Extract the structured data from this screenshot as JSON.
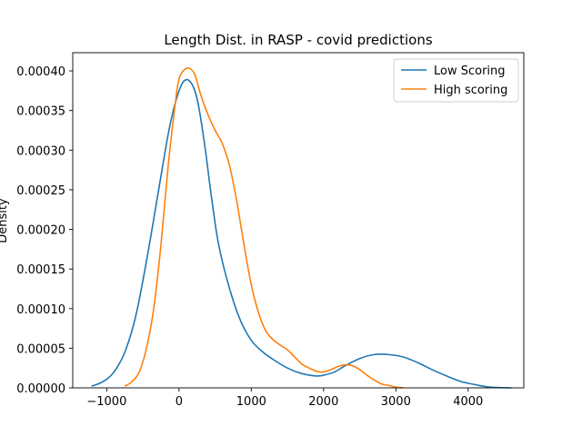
{
  "chart_data": {
    "type": "line",
    "title": "Length Dist. in RASP - covid predictions",
    "xlabel": "",
    "ylabel": "Density",
    "xlim": [
      -1470,
      4770
    ],
    "ylim": [
      0,
      0.000423
    ],
    "xticks": [
      {
        "value": -1000,
        "label": "−1000"
      },
      {
        "value": 0,
        "label": "0"
      },
      {
        "value": 1000,
        "label": "1000"
      },
      {
        "value": 2000,
        "label": "2000"
      },
      {
        "value": 3000,
        "label": "3000"
      },
      {
        "value": 4000,
        "label": "4000"
      }
    ],
    "yticks": [
      {
        "value": 0.0,
        "label": "0.00000"
      },
      {
        "value": 5e-05,
        "label": "0.00005"
      },
      {
        "value": 0.0001,
        "label": "0.00010"
      },
      {
        "value": 0.00015,
        "label": "0.00015"
      },
      {
        "value": 0.0002,
        "label": "0.00020"
      },
      {
        "value": 0.00025,
        "label": "0.00025"
      },
      {
        "value": 0.0003,
        "label": "0.00030"
      },
      {
        "value": 0.00035,
        "label": "0.00035"
      },
      {
        "value": 0.0004,
        "label": "0.00040"
      }
    ],
    "grid": false,
    "legend_position": "top-right",
    "series": [
      {
        "name": "Low Scoring",
        "color": "#1f77b4",
        "x": [
          -1210,
          -1050,
          -900,
          -750,
          -600,
          -450,
          -300,
          -150,
          -50,
          50,
          150,
          250,
          350,
          450,
          550,
          700,
          850,
          1000,
          1150,
          1300,
          1500,
          1700,
          1900,
          2000,
          2150,
          2300,
          2500,
          2700,
          2900,
          3100,
          3300,
          3500,
          3700,
          3900,
          4100,
          4300,
          4600
        ],
        "y": [
          2e-06,
          8e-06,
          2e-05,
          4.5e-05,
          9e-05,
          0.00016,
          0.00024,
          0.00032,
          0.00036,
          0.000385,
          0.000387,
          0.000365,
          0.00031,
          0.00024,
          0.00018,
          0.000125,
          8.5e-05,
          6e-05,
          4.6e-05,
          3.6e-05,
          2.5e-05,
          1.8e-05,
          1.5e-05,
          1.6e-05,
          2e-05,
          2.8e-05,
          3.7e-05,
          4.2e-05,
          4.2e-05,
          3.9e-05,
          3.2e-05,
          2.3e-05,
          1.5e-05,
          8e-06,
          4e-06,
          1e-06,
          0.0
        ]
      },
      {
        "name": "High scoring",
        "color": "#ff7f0e",
        "x": [
          -750,
          -650,
          -550,
          -450,
          -350,
          -250,
          -150,
          -50,
          0,
          80,
          150,
          220,
          300,
          400,
          500,
          600,
          700,
          800,
          900,
          1000,
          1100,
          1200,
          1300,
          1400,
          1500,
          1600,
          1700,
          1800,
          1900,
          2000,
          2100,
          2200,
          2300,
          2400,
          2500,
          2600,
          2700,
          2800,
          2900,
          3000,
          3100
        ],
        "y": [
          2e-06,
          8e-06,
          2e-05,
          5e-05,
          0.0001,
          0.00018,
          0.00028,
          0.00036,
          0.00039,
          0.000402,
          0.000403,
          0.000395,
          0.00037,
          0.000345,
          0.000325,
          0.000308,
          0.00028,
          0.000235,
          0.00018,
          0.00013,
          9.5e-05,
          7.2e-05,
          6.1e-05,
          5.4e-05,
          4.8e-05,
          3.9e-05,
          3e-05,
          2.5e-05,
          2.1e-05,
          2e-05,
          2.3e-05,
          2.7e-05,
          2.9e-05,
          2.8e-05,
          2.3e-05,
          1.6e-05,
          1e-05,
          5e-06,
          3e-06,
          1e-06,
          0.0
        ]
      }
    ]
  }
}
